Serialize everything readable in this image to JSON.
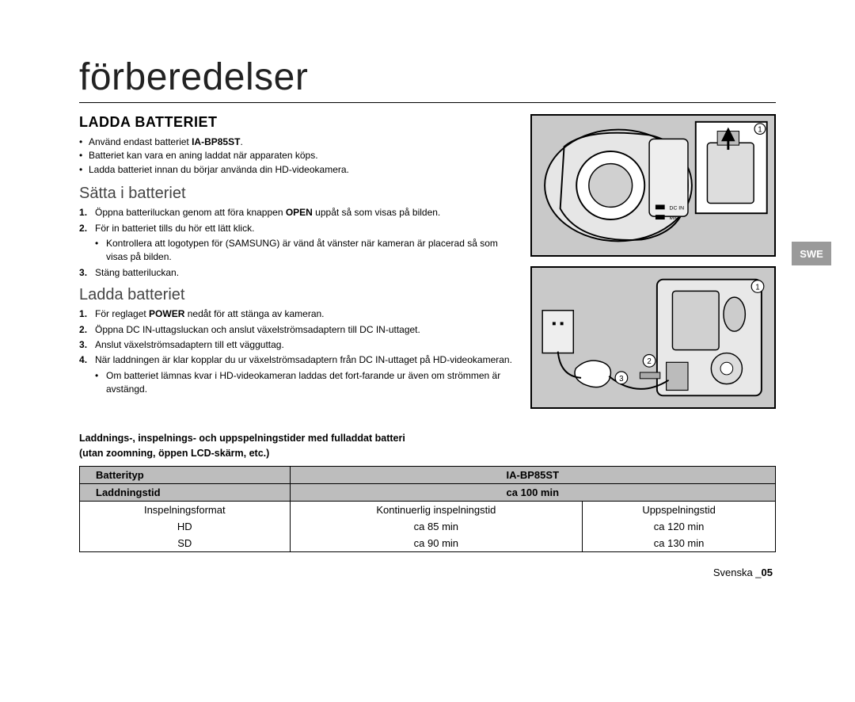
{
  "side_tab": "SWE",
  "title": "förberedelser",
  "section_heading": "LADDA BATTERIET",
  "intro_bullets": [
    {
      "pre": "Använd endast batteriet ",
      "bold": "IA-BP85ST",
      "post": "."
    },
    {
      "pre": "Batteriet kan vara en aning laddat när apparaten köps.",
      "bold": "",
      "post": ""
    },
    {
      "pre": "Ladda batteriet innan du börjar använda din HD-videokamera.",
      "bold": "",
      "post": ""
    }
  ],
  "sub1_heading": "Sätta i batteriet",
  "sub1_steps": [
    {
      "pre": "Öppna batteriluckan genom att föra knappen ",
      "bold": "OPEN",
      "post": " uppåt så som visas på bilden.",
      "children": []
    },
    {
      "pre": "För in batteriet tills du hör ett lätt klick.",
      "bold": "",
      "post": "",
      "children": [
        "Kontrollera att logotypen för (SAMSUNG) är vänd åt vänster när kameran är placerad så som visas på bilden."
      ]
    },
    {
      "pre": "Stäng batteriluckan.",
      "bold": "",
      "post": "",
      "children": []
    }
  ],
  "sub2_heading": "Ladda batteriet",
  "sub2_steps": [
    {
      "pre": "För reglaget ",
      "bold": "POWER",
      "post": " nedåt för att stänga av kameran.",
      "children": []
    },
    {
      "pre": "Öppna DC IN-uttagsluckan och anslut växelströmsadaptern till DC IN-uttaget.",
      "bold": "",
      "post": "",
      "children": []
    },
    {
      "pre": "Anslut växelströmsadaptern till ett vägguttag.",
      "bold": "",
      "post": "",
      "children": []
    },
    {
      "pre": "När laddningen är klar kopplar du ur växelströmsadaptern från DC IN-uttaget på HD-videokameran.",
      "bold": "",
      "post": "",
      "children": [
        "Om batteriet lämnas kvar i HD-videokameran laddas det fort-farande ur även om strömmen är avstängd."
      ]
    }
  ],
  "note_line1": "Laddnings-, inspelnings- och uppspelningstider med fulladdat batteri",
  "note_line2": "(utan zoomning, öppen LCD-skärm, etc.)",
  "table": {
    "r1c1": "Batterityp",
    "r1c2": "IA-BP85ST",
    "r2c1": "Laddningstid",
    "r2c2": "ca 100 min",
    "r3c1": "Inspelningsformat",
    "r3c2": "Kontinuerlig inspelningstid",
    "r3c3": "Uppspelningstid",
    "r4c1": "HD",
    "r4c2": "ca 85 min",
    "r4c3": "ca 120 min",
    "r5c1": "SD",
    "r5c2": "ca 90 min",
    "r5c3": "ca 130 min"
  },
  "footer_text": "Svenska _",
  "footer_page": "05",
  "figure_bg": "#c9c9c9",
  "figure_stroke": "#000000"
}
